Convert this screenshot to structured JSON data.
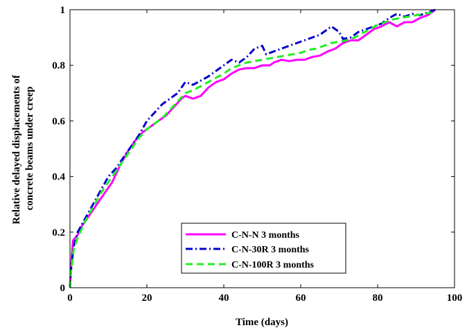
{
  "chart_data": {
    "type": "line",
    "xlabel": "Time (days)",
    "ylabel": [
      "Relative delayed displacements of",
      "concrete beams under creep"
    ],
    "xlim": [
      0,
      100
    ],
    "ylim": [
      0,
      1
    ],
    "xticks": [
      "0",
      "20",
      "40",
      "60",
      "80",
      "100"
    ],
    "yticks": [
      "0",
      "0.2",
      "0.4",
      "0.6",
      "0.8",
      "1"
    ],
    "grid": false,
    "legend_position": "bottom-right",
    "series": [
      {
        "name": "C-N-N 3 months",
        "color": "#ff00ff",
        "dash": "solid",
        "points": [
          [
            0,
            0
          ],
          [
            0.3,
            0.08
          ],
          [
            0.8,
            0.17
          ],
          [
            2,
            0.19
          ],
          [
            3,
            0.22
          ],
          [
            5,
            0.26
          ],
          [
            7,
            0.3
          ],
          [
            9,
            0.34
          ],
          [
            11,
            0.38
          ],
          [
            13,
            0.44
          ],
          [
            15,
            0.49
          ],
          [
            17,
            0.53
          ],
          [
            19,
            0.56
          ],
          [
            21,
            0.58
          ],
          [
            23,
            0.6
          ],
          [
            25,
            0.62
          ],
          [
            27,
            0.65
          ],
          [
            29,
            0.68
          ],
          [
            30,
            0.69
          ],
          [
            32,
            0.68
          ],
          [
            34,
            0.69
          ],
          [
            36,
            0.72
          ],
          [
            38,
            0.74
          ],
          [
            40,
            0.75
          ],
          [
            42,
            0.77
          ],
          [
            44,
            0.785
          ],
          [
            46,
            0.79
          ],
          [
            48,
            0.79
          ],
          [
            50,
            0.8
          ],
          [
            52,
            0.8
          ],
          [
            53,
            0.81
          ],
          [
            55,
            0.82
          ],
          [
            57,
            0.815
          ],
          [
            59,
            0.82
          ],
          [
            61,
            0.82
          ],
          [
            63,
            0.83
          ],
          [
            65,
            0.835
          ],
          [
            67,
            0.85
          ],
          [
            69,
            0.86
          ],
          [
            71,
            0.88
          ],
          [
            73,
            0.89
          ],
          [
            75,
            0.89
          ],
          [
            77,
            0.91
          ],
          [
            79,
            0.93
          ],
          [
            81,
            0.94
          ],
          [
            83,
            0.955
          ],
          [
            85,
            0.94
          ],
          [
            87,
            0.955
          ],
          [
            89,
            0.955
          ],
          [
            91,
            0.97
          ],
          [
            93,
            0.98
          ],
          [
            95,
            1.0
          ]
        ]
      },
      {
        "name": "C-N-30R 3 months",
        "color": "#0000cc",
        "dash": "dashdot",
        "points": [
          [
            0,
            0
          ],
          [
            0.3,
            0.07
          ],
          [
            1,
            0.15
          ],
          [
            2,
            0.2
          ],
          [
            4,
            0.25
          ],
          [
            6,
            0.3
          ],
          [
            8,
            0.35
          ],
          [
            10,
            0.4
          ],
          [
            12,
            0.43
          ],
          [
            14,
            0.47
          ],
          [
            16,
            0.51
          ],
          [
            18,
            0.55
          ],
          [
            20,
            0.6
          ],
          [
            22,
            0.63
          ],
          [
            24,
            0.66
          ],
          [
            26,
            0.68
          ],
          [
            28,
            0.7
          ],
          [
            30,
            0.74
          ],
          [
            32,
            0.73
          ],
          [
            34,
            0.745
          ],
          [
            36,
            0.76
          ],
          [
            38,
            0.78
          ],
          [
            40,
            0.8
          ],
          [
            42,
            0.82
          ],
          [
            44,
            0.81
          ],
          [
            46,
            0.83
          ],
          [
            48,
            0.86
          ],
          [
            50,
            0.87
          ],
          [
            51,
            0.84
          ],
          [
            53,
            0.85
          ],
          [
            55,
            0.86
          ],
          [
            57,
            0.87
          ],
          [
            59,
            0.88
          ],
          [
            61,
            0.89
          ],
          [
            63,
            0.9
          ],
          [
            65,
            0.91
          ],
          [
            67,
            0.93
          ],
          [
            68,
            0.94
          ],
          [
            70,
            0.92
          ],
          [
            71,
            0.895
          ],
          [
            73,
            0.9
          ],
          [
            75,
            0.92
          ],
          [
            77,
            0.93
          ],
          [
            79,
            0.94
          ],
          [
            81,
            0.95
          ],
          [
            83,
            0.97
          ],
          [
            85,
            0.985
          ],
          [
            87,
            0.975
          ],
          [
            89,
            0.985
          ],
          [
            91,
            0.98
          ],
          [
            93,
            0.99
          ],
          [
            95,
            1.0
          ]
        ]
      },
      {
        "name": "C-N-100R 3 months",
        "color": "#22ee22",
        "dash": "dashed",
        "points": [
          [
            0,
            0
          ],
          [
            0.3,
            0.06
          ],
          [
            1,
            0.14
          ],
          [
            2,
            0.18
          ],
          [
            4,
            0.24
          ],
          [
            6,
            0.29
          ],
          [
            8,
            0.34
          ],
          [
            10,
            0.38
          ],
          [
            12,
            0.42
          ],
          [
            14,
            0.46
          ],
          [
            16,
            0.5
          ],
          [
            18,
            0.54
          ],
          [
            20,
            0.57
          ],
          [
            22,
            0.59
          ],
          [
            24,
            0.61
          ],
          [
            26,
            0.64
          ],
          [
            28,
            0.67
          ],
          [
            30,
            0.7
          ],
          [
            32,
            0.71
          ],
          [
            34,
            0.725
          ],
          [
            36,
            0.74
          ],
          [
            38,
            0.755
          ],
          [
            40,
            0.77
          ],
          [
            42,
            0.79
          ],
          [
            44,
            0.8
          ],
          [
            46,
            0.81
          ],
          [
            48,
            0.815
          ],
          [
            50,
            0.82
          ],
          [
            52,
            0.825
          ],
          [
            54,
            0.83
          ],
          [
            56,
            0.835
          ],
          [
            58,
            0.84
          ],
          [
            60,
            0.845
          ],
          [
            62,
            0.855
          ],
          [
            64,
            0.86
          ],
          [
            66,
            0.87
          ],
          [
            68,
            0.88
          ],
          [
            70,
            0.885
          ],
          [
            72,
            0.89
          ],
          [
            74,
            0.9
          ],
          [
            76,
            0.915
          ],
          [
            78,
            0.93
          ],
          [
            80,
            0.945
          ],
          [
            82,
            0.955
          ],
          [
            84,
            0.965
          ],
          [
            86,
            0.97
          ],
          [
            88,
            0.975
          ],
          [
            90,
            0.98
          ],
          [
            92,
            0.985
          ],
          [
            94,
            0.99
          ],
          [
            95,
            1.0
          ]
        ]
      }
    ]
  }
}
